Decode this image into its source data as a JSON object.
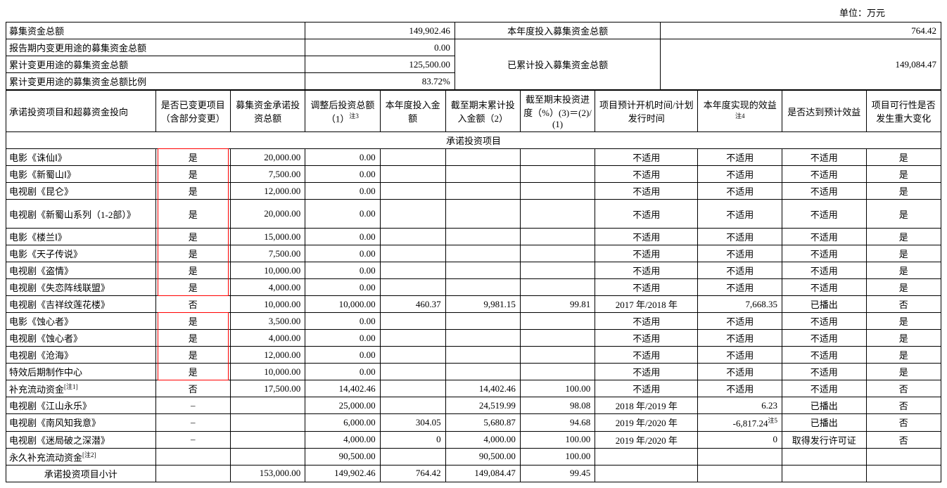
{
  "unit_label": "单位：万元",
  "summary": {
    "total_raised_label": "募集资金总额",
    "total_raised": "149,902.46",
    "this_year_invested_label": "本年度投入募集资金总额",
    "this_year_invested": "764.42",
    "changed_in_period_label": "报告期内变更用途的募集资金总额",
    "changed_in_period": "0.00",
    "cum_invested_label": "已累计投入募集资金总额",
    "cum_invested": "149,084.47",
    "cum_changed_label": "累计变更用途的募集资金总额",
    "cum_changed": "125,500.00",
    "cum_changed_ratio_label": "累计变更用途的募集资金总额比例",
    "cum_changed_ratio": "83.72%"
  },
  "headers": {
    "h1": "承诺投资项目和超募资金投向",
    "h2": "是否已变更项目（含部分变更）",
    "h3": "募集资金承诺投资总额",
    "h4": "调整后投资总额（1）",
    "h4_note": "注3",
    "h5": "本年度投入金额",
    "h6": "截至期末累计投入金额（2）",
    "h7": "截至期末投资进度（%）(3)＝(2)/(1)",
    "h8": "项目预计开机时间/计划发行时间",
    "h9": "本年度实现的效益",
    "h9_note": "注4",
    "h10": "是否达到预计效益",
    "h11": "项目可行性是否发生重大变化"
  },
  "section_title": "承诺投资项目",
  "note1": "[注1]",
  "note2": "[注2]",
  "note5": "注5",
  "rows": [
    {
      "name": "电影《诛仙Ⅰ》",
      "changed": "是",
      "commit": "20,000.00",
      "adjusted": "0.00",
      "thisyear": "",
      "cum": "",
      "progress": "",
      "plan": "不适用",
      "benefit": "不适用",
      "reach": "不适用",
      "change": "是",
      "red": "top"
    },
    {
      "name": "电影《新蜀山Ⅰ》",
      "changed": "是",
      "commit": "7,500.00",
      "adjusted": "0.00",
      "thisyear": "",
      "cum": "",
      "progress": "",
      "plan": "不适用",
      "benefit": "不适用",
      "reach": "不适用",
      "change": "是",
      "red": "mid"
    },
    {
      "name": "电视剧《昆仑》",
      "changed": "是",
      "commit": "12,000.00",
      "adjusted": "0.00",
      "thisyear": "",
      "cum": "",
      "progress": "",
      "plan": "不适用",
      "benefit": "不适用",
      "reach": "不适用",
      "change": "是",
      "red": "mid"
    },
    {
      "name": "电视剧《新蜀山系列（1-2部）》",
      "changed": "是",
      "commit": "20,000.00",
      "adjusted": "0.00",
      "thisyear": "",
      "cum": "",
      "progress": "",
      "plan": "不适用",
      "benefit": "不适用",
      "reach": "不适用",
      "change": "是",
      "red": "mid",
      "tall": true
    },
    {
      "name": "电影《楼兰Ⅰ》",
      "changed": "是",
      "commit": "15,000.00",
      "adjusted": "0.00",
      "thisyear": "",
      "cum": "",
      "progress": "",
      "plan": "不适用",
      "benefit": "不适用",
      "reach": "不适用",
      "change": "是",
      "red": "mid"
    },
    {
      "name": "电影《天子传说》",
      "changed": "是",
      "commit": "7,500.00",
      "adjusted": "0.00",
      "thisyear": "",
      "cum": "",
      "progress": "",
      "plan": "不适用",
      "benefit": "不适用",
      "reach": "不适用",
      "change": "是",
      "red": "mid"
    },
    {
      "name": "电视剧《盗情》",
      "changed": "是",
      "commit": "10,000.00",
      "adjusted": "0.00",
      "thisyear": "",
      "cum": "",
      "progress": "",
      "plan": "不适用",
      "benefit": "不适用",
      "reach": "不适用",
      "change": "是",
      "red": "mid"
    },
    {
      "name": "电视剧《失恋阵线联盟》",
      "changed": "是",
      "commit": "4,000.00",
      "adjusted": "0.00",
      "thisyear": "",
      "cum": "",
      "progress": "",
      "plan": "不适用",
      "benefit": "不适用",
      "reach": "不适用",
      "change": "是",
      "red": "bottom"
    },
    {
      "name": "电视剧《吉祥纹莲花楼》",
      "changed": "否",
      "commit": "10,000.00",
      "adjusted": "10,000.00",
      "thisyear": "460.37",
      "cum": "9,981.15",
      "progress": "99.81",
      "plan": "2017 年/2018 年",
      "benefit": "7,668.35",
      "reach": "已播出",
      "change": "否"
    },
    {
      "name": "电影《蚀心者》",
      "changed": "是",
      "commit": "3,500.00",
      "adjusted": "0.00",
      "thisyear": "",
      "cum": "",
      "progress": "",
      "plan": "不适用",
      "benefit": "不适用",
      "reach": "不适用",
      "change": "是",
      "red": "top"
    },
    {
      "name": "电视剧《蚀心者》",
      "changed": "是",
      "commit": "4,000.00",
      "adjusted": "0.00",
      "thisyear": "",
      "cum": "",
      "progress": "",
      "plan": "不适用",
      "benefit": "不适用",
      "reach": "不适用",
      "change": "是",
      "red": "mid"
    },
    {
      "name": "电视剧《沧海》",
      "changed": "是",
      "commit": "12,000.00",
      "adjusted": "0.00",
      "thisyear": "",
      "cum": "",
      "progress": "",
      "plan": "不适用",
      "benefit": "不适用",
      "reach": "不适用",
      "change": "是",
      "red": "mid"
    },
    {
      "name": "特效后期制作中心",
      "changed": "是",
      "commit": "10,000.00",
      "adjusted": "0.00",
      "thisyear": "",
      "cum": "",
      "progress": "",
      "plan": "不适用",
      "benefit": "不适用",
      "reach": "不适用",
      "change": "是",
      "red": "bottom"
    },
    {
      "name": "补充流动资金",
      "note": "note1",
      "changed": "否",
      "commit": "17,500.00",
      "adjusted": "14,402.46",
      "thisyear": "",
      "cum": "14,402.46",
      "progress": "100.00",
      "plan": "不适用",
      "benefit": "不适用",
      "reach": "不适用",
      "change": "否"
    },
    {
      "name": "电视剧《江山永乐》",
      "changed": "–",
      "commit": "",
      "adjusted": "25,000.00",
      "thisyear": "",
      "cum": "24,519.99",
      "progress": "98.08",
      "plan": "2018 年/2019 年",
      "benefit": "6.23",
      "reach": "已播出",
      "change": "否"
    },
    {
      "name": "电视剧《南风知我意》",
      "changed": "–",
      "commit": "",
      "adjusted": "6,000.00",
      "thisyear": "304.05",
      "cum": "5,680.87",
      "progress": "94.68",
      "plan": "2019 年/2020 年",
      "benefit": "-6,817.24",
      "benefit_note": "note5",
      "reach": "已播出",
      "change": "否"
    },
    {
      "name": "电视剧《迷局破之深潜》",
      "changed": "–",
      "commit": "",
      "adjusted": "4,000.00",
      "thisyear": "0",
      "cum": "4,000.00",
      "progress": "100.00",
      "plan": "2019 年/2020 年",
      "benefit": "0",
      "reach": "取得发行许可证",
      "change": "否"
    },
    {
      "name": "永久补充流动资金",
      "note": "note2",
      "changed": "",
      "commit": "",
      "adjusted": "90,500.00",
      "thisyear": "",
      "cum": "90,500.00",
      "progress": "100.00",
      "plan": "",
      "benefit": "",
      "reach": "",
      "change": ""
    }
  ],
  "subtotal": {
    "label": "承诺投资项目小计",
    "commit": "153,000.00",
    "adjusted": "149,902.46",
    "thisyear": "764.42",
    "cum": "149,084.47",
    "progress": "99.45"
  },
  "colors": {
    "border": "#000000",
    "red": "#ff0000",
    "text": "#000000",
    "bg": "#ffffff"
  },
  "fonts": {
    "family": "SimSun",
    "size_pt": 10
  }
}
